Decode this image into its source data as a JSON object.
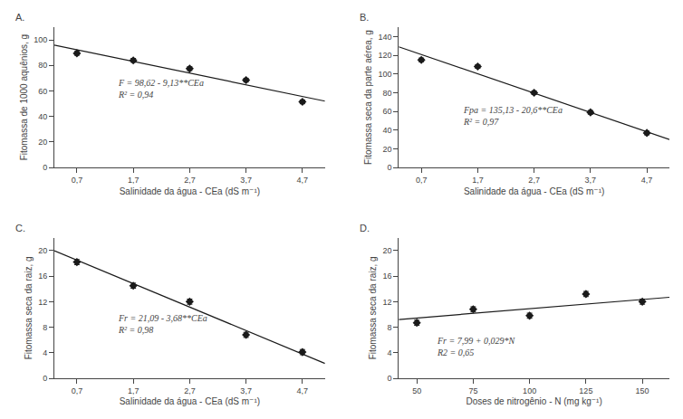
{
  "chart_data": [
    {
      "type": "scatter",
      "title": "A.",
      "xlabel": "Salinidade da água - CEa (dS m⁻¹)",
      "ylabel": "Fitomassa de 1000 aquênios, g",
      "xlim": [
        0.3,
        5.1
      ],
      "ylim": [
        0,
        110
      ],
      "xticks": [
        {
          "value": 0.7,
          "label": "0,7"
        },
        {
          "value": 1.7,
          "label": "1,7"
        },
        {
          "value": 2.7,
          "label": "2,7"
        },
        {
          "value": 3.7,
          "label": "3,7"
        },
        {
          "value": 4.7,
          "label": "4,7"
        }
      ],
      "yticks": [
        0,
        20,
        40,
        60,
        80,
        100
      ],
      "grid": false,
      "series": [
        {
          "type": "line",
          "color": "#1a1a1a",
          "x": [
            0.3,
            5.1
          ],
          "values": [
            95.881,
            52.057
          ]
        },
        {
          "type": "scatter",
          "marker": "diamond",
          "color": "#1a1a1a",
          "x": [
            0.7,
            1.7,
            2.7,
            3.7,
            4.7
          ],
          "values": [
            89.5,
            84.0,
            77.5,
            68.5,
            51.5
          ],
          "yerr": [
            1.5,
            1.5,
            1.5,
            1.5,
            1.5
          ]
        }
      ],
      "annotations": [
        {
          "text": "F = 98,62 - 9,13**CEa\nR² = 0,94",
          "x": 1.4,
          "y": 62
        }
      ]
    },
    {
      "type": "scatter",
      "title": "B.",
      "xlabel": "Salinidade da água - CEa (dS m⁻¹)",
      "ylabel": "Fitomassa seca da parte aérea, g",
      "xlim": [
        0.3,
        5.1
      ],
      "ylim": [
        0,
        150
      ],
      "xticks": [
        {
          "value": 0.7,
          "label": "0,7"
        },
        {
          "value": 1.7,
          "label": "1,7"
        },
        {
          "value": 2.7,
          "label": "2,7"
        },
        {
          "value": 3.7,
          "label": "3,7"
        },
        {
          "value": 4.7,
          "label": "4,7"
        }
      ],
      "yticks": [
        0,
        20,
        40,
        60,
        80,
        100,
        120,
        140
      ],
      "grid": false,
      "series": [
        {
          "type": "line",
          "color": "#1a1a1a",
          "x": [
            0.3,
            5.1
          ],
          "values": [
            128.95,
            30.07
          ]
        },
        {
          "type": "scatter",
          "marker": "diamond",
          "color": "#1a1a1a",
          "x": [
            0.7,
            1.7,
            2.7,
            3.7,
            4.7
          ],
          "values": [
            115.0,
            108.0,
            80.0,
            59.0,
            37.0
          ],
          "yerr": [
            2.0,
            2.0,
            2.0,
            2.0,
            2.0
          ]
        }
      ],
      "annotations": [
        {
          "text": "Fpa = 135,13 - 20,6**CEa\nR² = 0,97",
          "x": 1.4,
          "y": 55
        }
      ]
    },
    {
      "type": "scatter",
      "title": "C.",
      "xlabel": "Salinidade da água - CEa (dS m⁻¹)",
      "ylabel": "Fitomassa seca da raiz, g",
      "xlim": [
        0.3,
        5.1
      ],
      "ylim": [
        0,
        22
      ],
      "xticks": [
        {
          "value": 0.7,
          "label": "0,7"
        },
        {
          "value": 1.7,
          "label": "1,7"
        },
        {
          "value": 2.7,
          "label": "2,7"
        },
        {
          "value": 3.7,
          "label": "3,7"
        },
        {
          "value": 4.7,
          "label": "4,7"
        }
      ],
      "yticks": [
        0,
        4,
        8,
        12,
        16,
        20
      ],
      "grid": false,
      "series": [
        {
          "type": "line",
          "color": "#1a1a1a",
          "x": [
            0.3,
            5.1
          ],
          "values": [
            19.986,
            2.322
          ]
        },
        {
          "type": "scatter",
          "marker": "diamond",
          "color": "#1a1a1a",
          "x": [
            0.7,
            1.7,
            2.7,
            3.7,
            4.7
          ],
          "values": [
            18.2,
            14.5,
            12.0,
            6.8,
            4.1
          ],
          "yerr": [
            0.4,
            0.4,
            0.4,
            0.4,
            0.4
          ]
        }
      ],
      "annotations": [
        {
          "text": "Fr = 21,09 - 3,68**CEa\nR² = 0,98",
          "x": 1.4,
          "y": 8.5
        }
      ]
    },
    {
      "type": "scatter",
      "title": "D.",
      "xlabel": "Doses de nitrogênio - N (mg kg⁻¹)",
      "ylabel": "Fitomassa seca da raiz, g",
      "xlim": [
        42,
        162
      ],
      "ylim": [
        0,
        22
      ],
      "xticks": [
        50,
        75,
        100,
        125,
        150
      ],
      "yticks": [
        0,
        4,
        8,
        12,
        16,
        20
      ],
      "grid": false,
      "series": [
        {
          "type": "line",
          "color": "#1a1a1a",
          "x": [
            42,
            162
          ],
          "values": [
            9.208,
            12.688
          ]
        },
        {
          "type": "scatter",
          "marker": "diamond",
          "color": "#1a1a1a",
          "x": [
            50,
            75,
            100,
            125,
            150
          ],
          "values": [
            8.7,
            10.8,
            9.8,
            13.2,
            12.0
          ],
          "yerr": [
            0.4,
            0.4,
            0.4,
            0.4,
            0.4
          ]
        }
      ],
      "annotations": [
        {
          "text": "Fr = 7,99 + 0,029*N\nR2 = 0,65",
          "x": 58,
          "y": 5.0
        }
      ]
    }
  ]
}
